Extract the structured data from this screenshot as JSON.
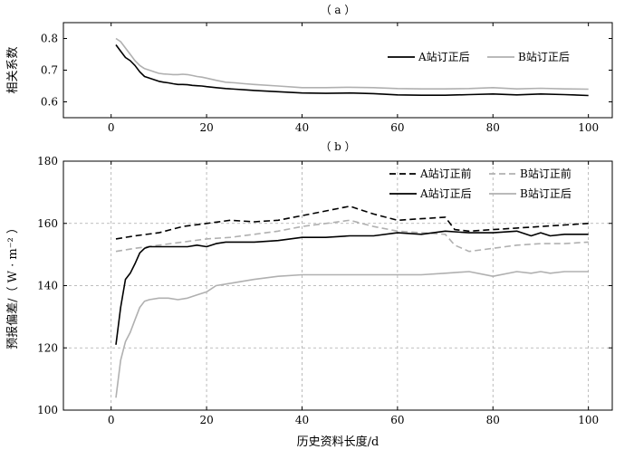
{
  "chart_data": [
    {
      "type": "line",
      "panel_label": "（ a ）",
      "xlabel": "",
      "ylabel": "相关系数",
      "xlim": [
        -10,
        105
      ],
      "ylim": [
        0.55,
        0.85
      ],
      "xticks": [
        0,
        20,
        40,
        60,
        80,
        100
      ],
      "yticks": [
        0.6,
        0.7,
        0.8
      ],
      "ytick_labels": [
        "0.6",
        "0.7",
        "0.8"
      ],
      "grid": false,
      "legend_position": "top-right",
      "series": [
        {
          "name": "A站订正后",
          "color": "#000000",
          "dash": "solid",
          "x": [
            1,
            2,
            3,
            4,
            5,
            6,
            7,
            8,
            9,
            10,
            11,
            12,
            13,
            14,
            15,
            16,
            17,
            18,
            19,
            20,
            22,
            24,
            26,
            28,
            30,
            35,
            40,
            45,
            50,
            55,
            60,
            65,
            70,
            75,
            80,
            85,
            90,
            95,
            100
          ],
          "y": [
            0.78,
            0.76,
            0.74,
            0.73,
            0.715,
            0.695,
            0.68,
            0.675,
            0.67,
            0.665,
            0.662,
            0.66,
            0.657,
            0.655,
            0.655,
            0.654,
            0.652,
            0.651,
            0.65,
            0.648,
            0.645,
            0.642,
            0.64,
            0.638,
            0.636,
            0.632,
            0.628,
            0.627,
            0.628,
            0.626,
            0.622,
            0.621,
            0.621,
            0.623,
            0.625,
            0.622,
            0.625,
            0.623,
            0.62
          ]
        },
        {
          "name": "B站订正后",
          "color": "#b0b0b0",
          "dash": "solid",
          "x": [
            1,
            2,
            3,
            4,
            5,
            6,
            7,
            8,
            9,
            10,
            11,
            12,
            13,
            14,
            15,
            16,
            17,
            18,
            19,
            20,
            22,
            24,
            26,
            28,
            30,
            35,
            40,
            45,
            50,
            55,
            60,
            65,
            70,
            75,
            80,
            85,
            90,
            95,
            100
          ],
          "y": [
            0.8,
            0.79,
            0.77,
            0.75,
            0.73,
            0.715,
            0.705,
            0.7,
            0.695,
            0.69,
            0.688,
            0.687,
            0.686,
            0.686,
            0.687,
            0.686,
            0.683,
            0.68,
            0.678,
            0.675,
            0.668,
            0.662,
            0.66,
            0.657,
            0.655,
            0.65,
            0.645,
            0.645,
            0.646,
            0.645,
            0.642,
            0.641,
            0.641,
            0.642,
            0.645,
            0.641,
            0.643,
            0.641,
            0.64
          ]
        }
      ]
    },
    {
      "type": "line",
      "panel_label": "（ b ）",
      "xlabel": "历史资料长度/d",
      "ylabel": "预报偏差/（ W · m⁻² ）",
      "xlim": [
        -10,
        105
      ],
      "ylim": [
        100,
        180
      ],
      "xticks": [
        0,
        20,
        40,
        60,
        80,
        100
      ],
      "yticks": [
        100,
        120,
        140,
        160,
        180
      ],
      "ytick_labels": [
        "100",
        "120",
        "140",
        "160",
        "180"
      ],
      "grid": true,
      "legend_position": "top-right",
      "series": [
        {
          "name": "A站订正前",
          "color": "#000000",
          "dash": "dashed",
          "x": [
            1,
            5,
            10,
            15,
            20,
            25,
            30,
            35,
            40,
            45,
            50,
            52,
            55,
            60,
            65,
            70,
            72,
            75,
            80,
            85,
            90,
            95,
            100
          ],
          "y": [
            155,
            156,
            157,
            159,
            160,
            161,
            160.5,
            161,
            162.5,
            164,
            165.5,
            164.5,
            163,
            161,
            161.5,
            162,
            158,
            157.5,
            158,
            158.5,
            159,
            159.5,
            160
          ]
        },
        {
          "name": "B站订正前",
          "color": "#b0b0b0",
          "dash": "dashed",
          "x": [
            1,
            5,
            10,
            15,
            20,
            25,
            30,
            35,
            40,
            45,
            50,
            55,
            60,
            65,
            70,
            72,
            75,
            80,
            85,
            90,
            95,
            100
          ],
          "y": [
            151,
            152,
            153,
            154,
            155,
            155.5,
            156.5,
            157.5,
            159,
            160,
            161,
            159,
            157.5,
            157,
            156.5,
            153,
            151,
            152,
            153,
            153.5,
            153.5,
            154
          ]
        },
        {
          "name": "A站订正后",
          "color": "#000000",
          "dash": "solid",
          "x": [
            1,
            2,
            3,
            4,
            5,
            6,
            7,
            8,
            10,
            12,
            14,
            16,
            18,
            20,
            22,
            24,
            26,
            28,
            30,
            35,
            40,
            45,
            50,
            55,
            60,
            65,
            70,
            75,
            80,
            85,
            88,
            90,
            92,
            95,
            100
          ],
          "y": [
            121,
            133,
            142,
            144,
            147,
            150.5,
            152,
            152.5,
            152.5,
            152.5,
            152.5,
            152.5,
            153,
            152.5,
            153.5,
            154,
            154,
            154,
            154,
            154.5,
            155.5,
            155.5,
            156,
            156,
            157,
            156.5,
            157.5,
            157,
            157,
            157.5,
            156,
            157,
            156,
            156.5,
            156.5
          ]
        },
        {
          "name": "B站订正后",
          "color": "#b0b0b0",
          "dash": "solid",
          "x": [
            1,
            2,
            3,
            4,
            5,
            6,
            7,
            8,
            10,
            12,
            14,
            16,
            18,
            20,
            22,
            24,
            26,
            28,
            30,
            35,
            40,
            45,
            50,
            55,
            60,
            65,
            70,
            75,
            80,
            85,
            88,
            90,
            92,
            95,
            100
          ],
          "y": [
            104,
            116,
            122,
            125,
            129,
            133,
            135,
            135.5,
            136,
            136,
            135.5,
            136,
            137,
            138,
            140,
            140.5,
            141,
            141.5,
            142,
            143,
            143.5,
            143.5,
            143.5,
            143.5,
            143.5,
            143.5,
            144,
            144.5,
            143,
            144.5,
            144,
            144.5,
            144,
            144.5,
            144.5
          ]
        }
      ]
    }
  ]
}
